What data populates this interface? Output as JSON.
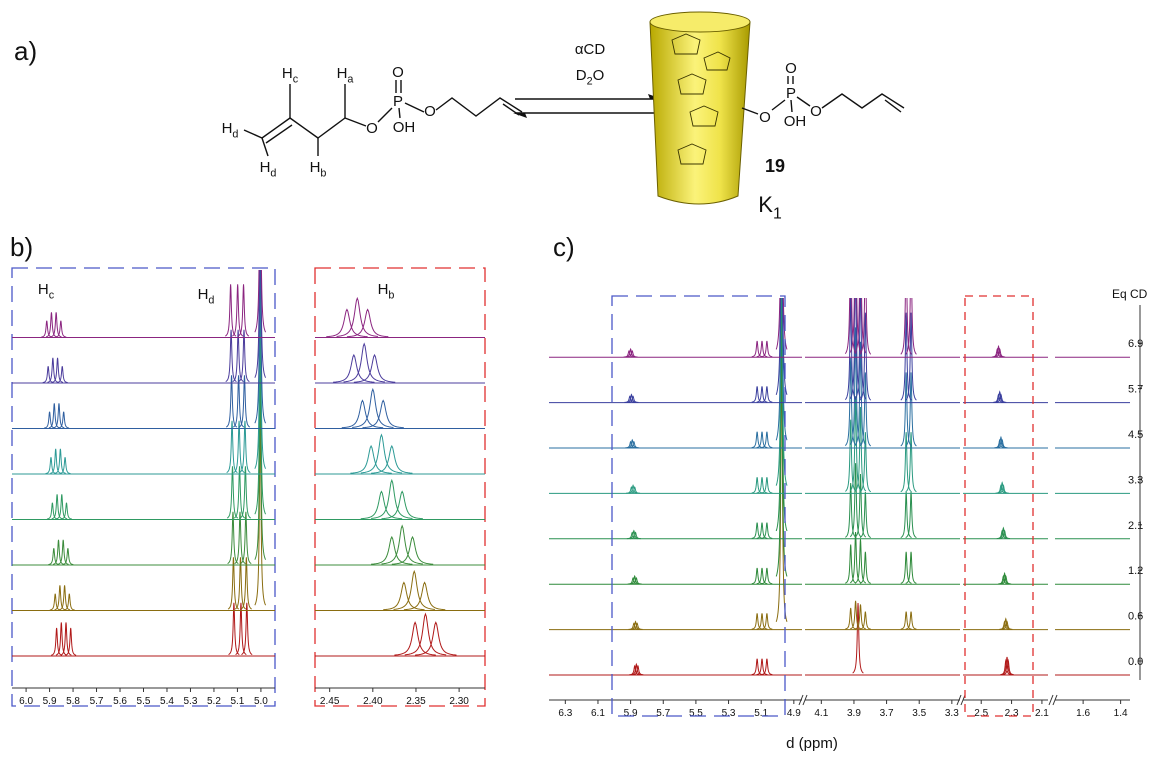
{
  "panel_labels": [
    "a)",
    "b)",
    "c)"
  ],
  "scheme": {
    "reagent": "αCD",
    "solvent": {
      "main": "D",
      "sub": "2",
      "tail": "O"
    },
    "left_atoms": [
      {
        "main": "H",
        "sub": "c"
      },
      {
        "main": "H",
        "sub": "a"
      },
      {
        "main": "H",
        "sub": "d"
      },
      {
        "main": "H",
        "sub": "d"
      },
      {
        "main": "H",
        "sub": "b"
      },
      {
        "main": "O"
      },
      {
        "main": "P"
      },
      {
        "main": "O"
      },
      {
        "main": "OH"
      },
      {
        "main": "O"
      }
    ],
    "right_atoms": [
      {
        "main": "O"
      },
      {
        "main": "P"
      },
      {
        "main": "O"
      },
      {
        "main": "OH"
      },
      {
        "main": "O"
      }
    ],
    "compound": "19",
    "constant": {
      "main": "K",
      "sub": "1"
    }
  },
  "chart_data": [
    {
      "type": "nmr",
      "segments": [
        {
          "xlim": [
            6.06,
            4.94
          ],
          "xticks": [
            {
              "value": 6,
              "label": "6.0"
            },
            5.9,
            5.8,
            5.7,
            5.6,
            5.5,
            5.4,
            5.3,
            5.2,
            5.1,
            {
              "value": 5,
              "label": "5.0"
            }
          ]
        }
      ],
      "annotations": [
        {
          "main": "H",
          "sub": "c"
        },
        {
          "main": "H",
          "sub": "d"
        }
      ],
      "traces": [
        {
          "color": "#b01818",
          "peaks": [
            [
              5.87,
              1.0
            ],
            [
              5.85,
              1.2
            ],
            [
              5.83,
              1.2
            ],
            [
              5.81,
              1.0
            ],
            [
              5.115,
              1.9
            ],
            [
              5.085,
              1.9
            ],
            [
              5.06,
              1.9
            ]
          ]
        },
        {
          "color": "#8a6d10",
          "peaks": [
            [
              5.876,
              0.6
            ],
            [
              5.856,
              0.9
            ],
            [
              5.836,
              0.9
            ],
            [
              5.816,
              0.6
            ],
            [
              5.117,
              1.9
            ],
            [
              5.087,
              1.9
            ],
            [
              5.062,
              1.9
            ],
            [
              5.003,
              7
            ]
          ]
        },
        {
          "color": "#3c8c3c",
          "peaks": [
            [
              5.882,
              0.6
            ],
            [
              5.862,
              0.9
            ],
            [
              5.842,
              0.9
            ],
            [
              5.822,
              0.6
            ],
            [
              5.119,
              1.9
            ],
            [
              5.089,
              1.9
            ],
            [
              5.064,
              1.9
            ],
            [
              5.003,
              7
            ]
          ]
        },
        {
          "color": "#2f9a62",
          "peaks": [
            [
              5.888,
              0.6
            ],
            [
              5.868,
              0.9
            ],
            [
              5.848,
              0.9
            ],
            [
              5.828,
              0.6
            ],
            [
              5.121,
              1.9
            ],
            [
              5.091,
              1.9
            ],
            [
              5.066,
              1.9
            ],
            [
              5.003,
              7
            ]
          ]
        },
        {
          "color": "#2c9a96",
          "peaks": [
            [
              5.894,
              0.6
            ],
            [
              5.874,
              0.9
            ],
            [
              5.854,
              0.9
            ],
            [
              5.834,
              0.6
            ],
            [
              5.123,
              1.9
            ],
            [
              5.093,
              1.9
            ],
            [
              5.068,
              1.9
            ],
            [
              5.003,
              7
            ]
          ]
        },
        {
          "color": "#2f5fa0",
          "peaks": [
            [
              5.9,
              0.6
            ],
            [
              5.88,
              0.9
            ],
            [
              5.86,
              0.9
            ],
            [
              5.84,
              0.6
            ],
            [
              5.125,
              1.9
            ],
            [
              5.095,
              1.9
            ],
            [
              5.07,
              1.9
            ],
            [
              5.003,
              7
            ]
          ]
        },
        {
          "color": "#4b3c9c",
          "peaks": [
            [
              5.906,
              0.6
            ],
            [
              5.886,
              0.9
            ],
            [
              5.866,
              0.9
            ],
            [
              5.846,
              0.6
            ],
            [
              5.127,
              1.9
            ],
            [
              5.097,
              1.9
            ],
            [
              5.072,
              1.9
            ],
            [
              5.003,
              7
            ]
          ]
        },
        {
          "color": "#8b2580",
          "peaks": [
            [
              5.912,
              0.6
            ],
            [
              5.892,
              0.9
            ],
            [
              5.872,
              0.9
            ],
            [
              5.852,
              0.6
            ],
            [
              5.129,
              1.9
            ],
            [
              5.099,
              1.9
            ],
            [
              5.074,
              1.9
            ],
            [
              5.003,
              7
            ]
          ]
        }
      ]
    },
    {
      "type": "nmr",
      "segments": [
        {
          "xlim": [
            2.467,
            2.27
          ],
          "xticks": [
            2.45,
            {
              "value": 2.4,
              "label": "2.40"
            },
            2.35,
            {
              "value": 2.3,
              "label": "2.30"
            }
          ]
        }
      ],
      "annotations": [
        {
          "main": "H",
          "sub": "b"
        }
      ],
      "traces": [
        {
          "color": "#b01818",
          "peaks": [
            [
              2.351,
              1.2
            ],
            [
              2.339,
              1.5
            ],
            [
              2.327,
              1.2
            ]
          ]
        },
        {
          "color": "#8a6d10",
          "peaks": [
            [
              2.364,
              1.0
            ],
            [
              2.352,
              1.4
            ],
            [
              2.34,
              1.0
            ]
          ]
        },
        {
          "color": "#3c8c3c",
          "peaks": [
            [
              2.378,
              1.0
            ],
            [
              2.366,
              1.4
            ],
            [
              2.354,
              1.0
            ]
          ]
        },
        {
          "color": "#2f9a62",
          "peaks": [
            [
              2.39,
              1.0
            ],
            [
              2.378,
              1.4
            ],
            [
              2.366,
              1.0
            ]
          ]
        },
        {
          "color": "#2c9a96",
          "peaks": [
            [
              2.402,
              1.0
            ],
            [
              2.39,
              1.4
            ],
            [
              2.378,
              1.0
            ]
          ]
        },
        {
          "color": "#2f5fa0",
          "peaks": [
            [
              2.412,
              1.0
            ],
            [
              2.4,
              1.4
            ],
            [
              2.388,
              1.0
            ]
          ]
        },
        {
          "color": "#4b3c9c",
          "peaks": [
            [
              2.422,
              1.0
            ],
            [
              2.41,
              1.4
            ],
            [
              2.398,
              1.0
            ]
          ]
        },
        {
          "color": "#8b2580",
          "peaks": [
            [
              2.43,
              1.0
            ],
            [
              2.418,
              1.4
            ],
            [
              2.406,
              1.0
            ]
          ]
        }
      ]
    },
    {
      "type": "nmr",
      "segments": [
        {
          "xlim": [
            6.4,
            4.85
          ],
          "xticks": [
            6.3,
            6.1,
            5.9,
            5.7,
            5.5,
            5.3,
            5.1,
            4.9
          ]
        },
        {
          "xlim": [
            4.2,
            3.25
          ],
          "xticks": [
            4.1,
            3.9,
            3.7,
            3.5,
            3.3
          ]
        },
        {
          "xlim": [
            2.62,
            2.06
          ],
          "xticks": [
            2.5,
            2.3,
            2.1
          ]
        },
        {
          "xlim": [
            1.75,
            1.35
          ],
          "xticks": [
            1.6,
            1.4
          ]
        }
      ],
      "xlabel": "d (ppm)",
      "legend_title": "Eq CD",
      "traces": [
        {
          "name": "0.0",
          "color": "#b01818",
          "peaks": [
            [
              5.875,
              0.5
            ],
            [
              5.865,
              0.6
            ],
            [
              5.855,
              0.5
            ],
            [
              5.125,
              0.9
            ],
            [
              5.095,
              0.9
            ],
            [
              5.065,
              0.9
            ],
            [
              3.875,
              4
            ],
            [
              2.338,
              0.8
            ],
            [
              2.33,
              1
            ],
            [
              2.322,
              0.8
            ]
          ]
        },
        {
          "name": "0.6",
          "color": "#8a6d10",
          "peaks": [
            [
              5.88,
              0.35
            ],
            [
              5.87,
              0.45
            ],
            [
              5.86,
              0.35
            ],
            [
              5.125,
              0.9
            ],
            [
              5.095,
              0.9
            ],
            [
              5.065,
              0.9
            ],
            [
              4.975,
              16
            ],
            [
              3.92,
              1.2
            ],
            [
              3.89,
              1.6
            ],
            [
              3.86,
              1.4
            ],
            [
              3.83,
              1.0
            ],
            [
              3.58,
              1.0
            ],
            [
              3.55,
              1.0
            ],
            [
              2.346,
              0.45
            ],
            [
              2.338,
              0.6
            ],
            [
              2.33,
              0.45
            ]
          ]
        },
        {
          "name": "1.2",
          "color": "#2e8a3a",
          "peaks": [
            [
              5.885,
              0.35
            ],
            [
              5.875,
              0.45
            ],
            [
              5.865,
              0.35
            ],
            [
              5.125,
              0.9
            ],
            [
              5.095,
              0.9
            ],
            [
              5.065,
              0.9
            ],
            [
              4.975,
              16
            ],
            [
              3.92,
              2.2
            ],
            [
              3.89,
              2.9
            ],
            [
              3.86,
              2.5
            ],
            [
              3.83,
              1.8
            ],
            [
              3.58,
              1.8
            ],
            [
              3.55,
              1.8
            ],
            [
              2.354,
              0.45
            ],
            [
              2.346,
              0.6
            ],
            [
              2.338,
              0.45
            ]
          ]
        },
        {
          "name": "2.1",
          "color": "#2a9050",
          "peaks": [
            [
              5.89,
              0.35
            ],
            [
              5.88,
              0.45
            ],
            [
              5.87,
              0.35
            ],
            [
              5.125,
              0.9
            ],
            [
              5.095,
              0.9
            ],
            [
              5.065,
              0.9
            ],
            [
              4.975,
              16
            ],
            [
              3.92,
              3.1
            ],
            [
              3.89,
              4.2
            ],
            [
              3.86,
              3.6
            ],
            [
              3.83,
              2.6
            ],
            [
              3.58,
              2.6
            ],
            [
              3.55,
              2.6
            ],
            [
              2.362,
              0.45
            ],
            [
              2.354,
              0.6
            ],
            [
              2.346,
              0.45
            ]
          ]
        },
        {
          "name": "3.3",
          "color": "#2a9a80",
          "peaks": [
            [
              5.895,
              0.35
            ],
            [
              5.885,
              0.45
            ],
            [
              5.875,
              0.35
            ],
            [
              5.125,
              0.9
            ],
            [
              5.095,
              0.9
            ],
            [
              5.065,
              0.9
            ],
            [
              4.975,
              16
            ],
            [
              3.92,
              4.1
            ],
            [
              3.89,
              5.4
            ],
            [
              3.86,
              4.8
            ],
            [
              3.83,
              3.4
            ],
            [
              3.58,
              3.4
            ],
            [
              3.55,
              3.4
            ],
            [
              2.37,
              0.45
            ],
            [
              2.362,
              0.6
            ],
            [
              2.354,
              0.45
            ]
          ]
        },
        {
          "name": "4.5",
          "color": "#2a6fa0",
          "peaks": [
            [
              5.9,
              0.35
            ],
            [
              5.89,
              0.45
            ],
            [
              5.88,
              0.35
            ],
            [
              5.125,
              0.9
            ],
            [
              5.095,
              0.9
            ],
            [
              5.065,
              0.9
            ],
            [
              4.975,
              16
            ],
            [
              3.92,
              5
            ],
            [
              3.89,
              6.7
            ],
            [
              3.86,
              5.9
            ],
            [
              3.83,
              4.2
            ],
            [
              3.58,
              4.2
            ],
            [
              3.55,
              4.2
            ],
            [
              2.378,
              0.45
            ],
            [
              2.37,
              0.6
            ],
            [
              2.362,
              0.45
            ]
          ]
        },
        {
          "name": "5.7",
          "color": "#3a3f9e",
          "peaks": [
            [
              5.905,
              0.35
            ],
            [
              5.895,
              0.45
            ],
            [
              5.885,
              0.35
            ],
            [
              5.125,
              0.9
            ],
            [
              5.095,
              0.9
            ],
            [
              5.065,
              0.9
            ],
            [
              4.975,
              16
            ],
            [
              3.92,
              6
            ],
            [
              3.89,
              8
            ],
            [
              3.86,
              7
            ],
            [
              3.83,
              5
            ],
            [
              3.58,
              5
            ],
            [
              3.55,
              5
            ],
            [
              2.386,
              0.45
            ],
            [
              2.378,
              0.6
            ],
            [
              2.37,
              0.45
            ]
          ]
        },
        {
          "name": "6.9",
          "color": "#8b2580",
          "peaks": [
            [
              5.91,
              0.35
            ],
            [
              5.9,
              0.45
            ],
            [
              5.89,
              0.35
            ],
            [
              5.125,
              0.9
            ],
            [
              5.095,
              0.9
            ],
            [
              5.065,
              0.9
            ],
            [
              4.975,
              16
            ],
            [
              3.92,
              7.2
            ],
            [
              3.89,
              9.6
            ],
            [
              3.86,
              8.4
            ],
            [
              3.83,
              6
            ],
            [
              3.58,
              6
            ],
            [
              3.55,
              6
            ],
            [
              2.394,
              0.45
            ],
            [
              2.386,
              0.6
            ],
            [
              2.378,
              0.45
            ]
          ]
        }
      ]
    }
  ]
}
